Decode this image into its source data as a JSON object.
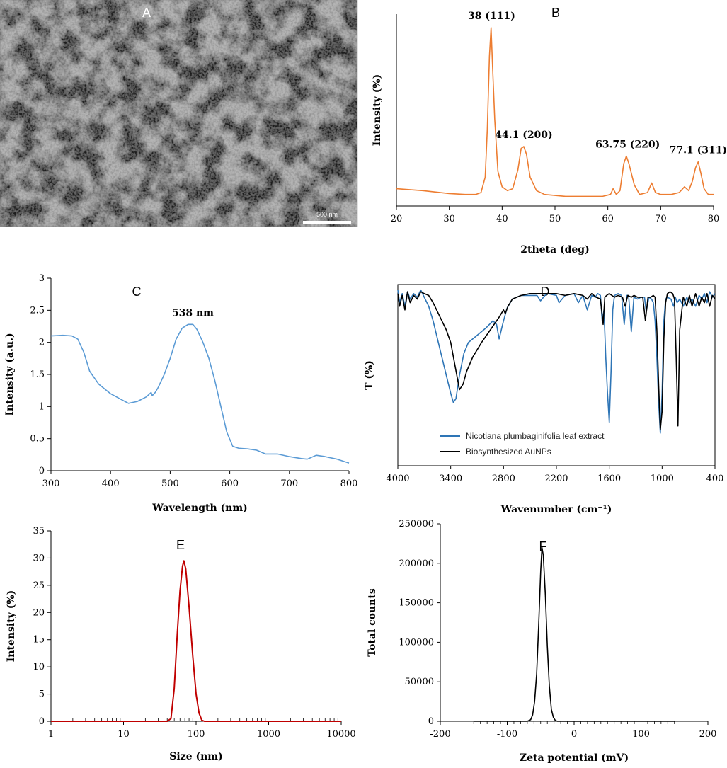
{
  "panels": {
    "A": {
      "label": "A",
      "scale_bar_label": "500 nm"
    }
  },
  "chart_data": [
    {
      "panel": "B",
      "label": "B",
      "type": "line",
      "xlabel": "2theta (deg)",
      "ylabel": "Intensity (%)",
      "xlim": [
        20,
        80
      ],
      "xticks": [
        20,
        30,
        40,
        50,
        60,
        70,
        80
      ],
      "yticks": [],
      "ylim": [
        0,
        100
      ],
      "grid": false,
      "series": [
        {
          "color": "#ED7D31",
          "x": [
            20,
            25,
            30,
            33,
            35,
            36,
            36.8,
            37.2,
            37.6,
            37.9,
            38.2,
            38.6,
            39.2,
            40,
            41,
            42,
            43,
            43.6,
            44.1,
            44.6,
            45.3,
            46.5,
            48,
            52,
            56,
            59,
            60.5,
            61,
            61.6,
            62.3,
            63,
            63.5,
            64,
            65,
            66,
            67.5,
            68.3,
            69,
            70,
            72,
            73.5,
            74.5,
            75.3,
            76,
            76.6,
            77.1,
            77.6,
            78.2,
            79,
            80
          ],
          "y": [
            9,
            8,
            6.5,
            6,
            6,
            7,
            15,
            40,
            78,
            93,
            72,
            45,
            18,
            10,
            8,
            9,
            19,
            30,
            31,
            27,
            15,
            8,
            6,
            5,
            5,
            5,
            6,
            9,
            6,
            8,
            22,
            26,
            22,
            11,
            6,
            7,
            12,
            7,
            6,
            6,
            7,
            10,
            8,
            13,
            20,
            23,
            17,
            9,
            6,
            6
          ]
        }
      ],
      "annotations": [
        {
          "text": "38 (111)",
          "x": 38,
          "y": 93
        },
        {
          "text": "44.1 (200)",
          "x": 44.1,
          "y": 31
        },
        {
          "text": "63.75 (220)",
          "x": 63.75,
          "y": 26
        },
        {
          "text": "77.1 (311)",
          "x": 77.1,
          "y": 23
        }
      ]
    },
    {
      "panel": "C",
      "label": "C",
      "type": "line",
      "xlabel": "Wavelength (nm)",
      "ylabel": "Intensity (a.u.)",
      "xlim": [
        300,
        800
      ],
      "ylim": [
        0,
        3
      ],
      "xticks": [
        300,
        400,
        500,
        600,
        700,
        800
      ],
      "yticks": [
        0,
        0.5,
        1,
        1.5,
        2,
        2.5,
        3
      ],
      "grid": false,
      "series": [
        {
          "color": "#5B9BD5",
          "x": [
            300,
            320,
            335,
            345,
            355,
            365,
            380,
            400,
            420,
            430,
            445,
            460,
            468,
            470,
            475,
            480,
            490,
            500,
            510,
            520,
            530,
            538,
            545,
            555,
            565,
            575,
            585,
            595,
            605,
            615,
            630,
            645,
            660,
            680,
            700,
            720,
            730,
            745,
            760,
            780,
            800
          ],
          "y": [
            2.1,
            2.11,
            2.1,
            2.05,
            1.85,
            1.55,
            1.35,
            1.2,
            1.1,
            1.05,
            1.08,
            1.15,
            1.22,
            1.17,
            1.22,
            1.3,
            1.5,
            1.75,
            2.05,
            2.22,
            2.28,
            2.28,
            2.2,
            2.0,
            1.75,
            1.4,
            1.0,
            0.6,
            0.38,
            0.35,
            0.34,
            0.32,
            0.26,
            0.26,
            0.22,
            0.19,
            0.18,
            0.24,
            0.22,
            0.18,
            0.12
          ]
        }
      ],
      "annotations": [
        {
          "text": "538 nm",
          "x": 538,
          "y": 2.28
        }
      ]
    },
    {
      "panel": "D",
      "label": "D",
      "type": "line",
      "xlabel": "Wavenumber (cm⁻¹)",
      "ylabel": "T (%)",
      "xlim": [
        4000,
        400
      ],
      "ylim": [
        0,
        100
      ],
      "xticks": [
        4000,
        3400,
        2800,
        2200,
        1600,
        1000,
        400
      ],
      "yticks": [],
      "grid": false,
      "legend": "bottom-left",
      "series": [
        {
          "name": "Nicotiana plumbaginifolia leaf extract",
          "color": "#2E75B6",
          "x": [
            4000,
            3980,
            3950,
            3920,
            3890,
            3860,
            3820,
            3780,
            3740,
            3700,
            3650,
            3600,
            3550,
            3500,
            3450,
            3400,
            3370,
            3340,
            3300,
            3250,
            3200,
            3100,
            3000,
            2920,
            2880,
            2850,
            2820,
            2800,
            2760,
            2700,
            2600,
            2500,
            2420,
            2380,
            2330,
            2300,
            2200,
            2170,
            2100,
            2000,
            1950,
            1900,
            1850,
            1800,
            1760,
            1730,
            1700,
            1680,
            1660,
            1640,
            1620,
            1600,
            1580,
            1560,
            1540,
            1500,
            1460,
            1430,
            1400,
            1380,
            1350,
            1320,
            1280,
            1240,
            1200,
            1180,
            1150,
            1120,
            1100,
            1080,
            1060,
            1040,
            1020,
            1000,
            980,
            960,
            940,
            900,
            870,
            850,
            830,
            800,
            760,
            720,
            690,
            660,
            620,
            580,
            550,
            520,
            490,
            460,
            430,
            400
          ],
          "y": [
            97,
            90,
            95,
            88,
            96,
            92,
            95,
            93,
            97,
            93,
            88,
            80,
            70,
            60,
            50,
            40,
            35,
            37,
            50,
            62,
            68,
            72,
            76,
            80,
            78,
            70,
            76,
            80,
            87,
            92,
            94,
            94,
            94,
            91,
            94,
            95,
            94,
            90,
            94,
            95,
            90,
            94,
            86,
            94,
            93,
            95,
            94,
            80,
            86,
            60,
            40,
            24,
            52,
            86,
            94,
            95,
            94,
            78,
            94,
            94,
            74,
            93,
            92,
            93,
            93,
            85,
            93,
            92,
            90,
            80,
            60,
            35,
            18,
            40,
            80,
            92,
            93,
            92,
            88,
            93,
            90,
            92,
            88,
            93,
            90,
            92,
            88,
            94,
            92,
            95,
            90,
            96,
            93,
            95
          ]
        },
        {
          "name": "Biosynthesized AuNPs",
          "color": "#000000",
          "x": [
            4000,
            3980,
            3950,
            3920,
            3890,
            3860,
            3820,
            3780,
            3740,
            3700,
            3650,
            3600,
            3550,
            3500,
            3450,
            3400,
            3350,
            3300,
            3260,
            3220,
            3150,
            3050,
            2950,
            2850,
            2800,
            2780,
            2750,
            2700,
            2600,
            2500,
            2400,
            2300,
            2200,
            2100,
            2000,
            1900,
            1850,
            1800,
            1750,
            1700,
            1670,
            1650,
            1630,
            1600,
            1570,
            1540,
            1500,
            1450,
            1420,
            1390,
            1350,
            1320,
            1280,
            1250,
            1220,
            1190,
            1160,
            1130,
            1100,
            1080,
            1060,
            1040,
            1020,
            1000,
            980,
            960,
            940,
            910,
            880,
            860,
            840,
            820,
            800,
            760,
            720,
            690,
            660,
            620,
            580,
            550,
            520,
            490,
            460,
            430,
            400
          ],
          "y": [
            95,
            88,
            94,
            86,
            96,
            90,
            94,
            92,
            96,
            95,
            94,
            90,
            85,
            80,
            75,
            68,
            55,
            42,
            45,
            52,
            60,
            68,
            75,
            82,
            86,
            84,
            88,
            92,
            94,
            95,
            95,
            95,
            95,
            94,
            95,
            94,
            92,
            95,
            93,
            92,
            78,
            93,
            94,
            95,
            94,
            93,
            94,
            93,
            88,
            94,
            93,
            94,
            93,
            93,
            93,
            80,
            93,
            93,
            94,
            93,
            75,
            45,
            20,
            30,
            70,
            90,
            95,
            96,
            95,
            92,
            60,
            22,
            75,
            93,
            88,
            94,
            88,
            95,
            88,
            93,
            90,
            95,
            88,
            94,
            92
          ]
        }
      ]
    },
    {
      "panel": "E",
      "label": "E",
      "type": "area",
      "xlabel": "Size (nm)",
      "ylabel": "Intensity (%)",
      "xscale": "log",
      "xlim": [
        1,
        10000
      ],
      "ylim": [
        0,
        35
      ],
      "xticks": [
        1,
        10,
        100,
        1000,
        10000
      ],
      "yticks": [
        0,
        5,
        10,
        15,
        20,
        25,
        30,
        35
      ],
      "grid": false,
      "series": [
        {
          "color": "#C00000",
          "x": [
            1,
            40,
            45,
            50,
            55,
            60,
            65,
            68,
            72,
            80,
            90,
            100,
            110,
            120,
            130,
            10000
          ],
          "y": [
            0,
            0,
            0.5,
            6,
            16,
            24,
            28.5,
            29.5,
            28,
            21,
            12,
            5,
            1.5,
            0.2,
            0,
            0
          ]
        }
      ]
    },
    {
      "panel": "F",
      "label": "F",
      "type": "line",
      "xlabel": "Zeta potential (mV)",
      "ylabel": "Total counts",
      "xlim": [
        -200,
        200
      ],
      "ylim": [
        0,
        250000
      ],
      "xticks": [
        -200,
        -100,
        0,
        100,
        200
      ],
      "yticks": [
        0,
        50000,
        100000,
        150000,
        200000,
        250000
      ],
      "grid": false,
      "series": [
        {
          "color": "#000000",
          "x": [
            -150,
            -70,
            -65,
            -62,
            -59,
            -56,
            -53,
            -50,
            -48,
            -46,
            -43,
            -40,
            -37,
            -34,
            -31,
            -28,
            -25,
            150
          ],
          "y": [
            0,
            0,
            2000,
            8000,
            25000,
            60000,
            120000,
            190000,
            220000,
            210000,
            160000,
            95000,
            45000,
            15000,
            5000,
            1000,
            0,
            0
          ]
        }
      ]
    }
  ]
}
